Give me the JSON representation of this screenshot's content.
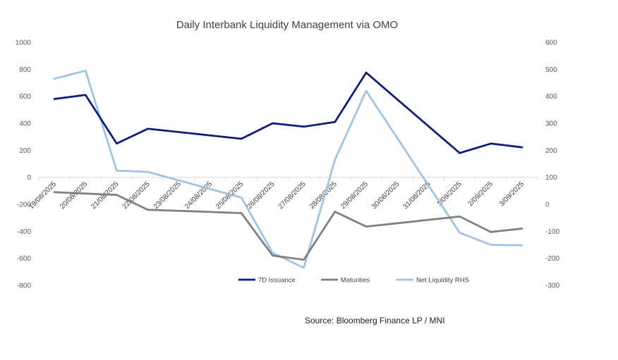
{
  "chart_data": {
    "type": "line",
    "title": "Daily Interbank Liquidity Management via OMO",
    "categories": [
      "19/08/2025",
      "20/08/2025",
      "21/08/2025",
      "22/08/2025",
      "23/08/2025",
      "24/08/2025",
      "25/08/2025",
      "26/08/2025",
      "27/08/2025",
      "28/08/2025",
      "29/08/2025",
      "30/08/2025",
      "31/08/2025",
      "1/09/2025",
      "2/09/2025",
      "3/09/2025"
    ],
    "y_left": {
      "min": -800,
      "max": 1000,
      "step": 200,
      "ticks": [
        "1000",
        "800",
        "600",
        "400",
        "200",
        "0",
        "-200",
        "-400",
        "-600",
        "-800"
      ]
    },
    "y_right": {
      "min": -300,
      "max": 600,
      "step": 100,
      "ticks": [
        "600",
        "500",
        "400",
        "300",
        "200",
        "100",
        "0",
        "-100",
        "-200",
        "-300"
      ]
    },
    "series": [
      {
        "name": "7D Issuance",
        "axis": "left",
        "color": "#0f1a7d",
        "values": [
          580,
          610,
          250,
          360,
          null,
          null,
          285,
          400,
          375,
          410,
          775,
          null,
          null,
          180,
          250,
          222
        ]
      },
      {
        "name": "Maturities",
        "axis": "left",
        "color": "#7f7f7f",
        "values": [
          -110,
          -120,
          -130,
          -240,
          null,
          null,
          -265,
          -580,
          -610,
          -255,
          -365,
          null,
          null,
          -290,
          -405,
          -380
        ]
      },
      {
        "name": "Net Liquidity RHS",
        "axis": "right",
        "color": "#9dc3e6",
        "values": [
          465,
          495,
          125,
          120,
          null,
          null,
          25,
          -180,
          -235,
          165,
          420,
          null,
          null,
          -105,
          -150,
          -152
        ]
      }
    ],
    "legend": [
      "7D Issuance",
      "Maturities",
      "Net Liquidity RHS"
    ],
    "legend_position": "bottom-right",
    "grid": false,
    "source": "Source: Bloomberg Finance LP / MNI"
  }
}
